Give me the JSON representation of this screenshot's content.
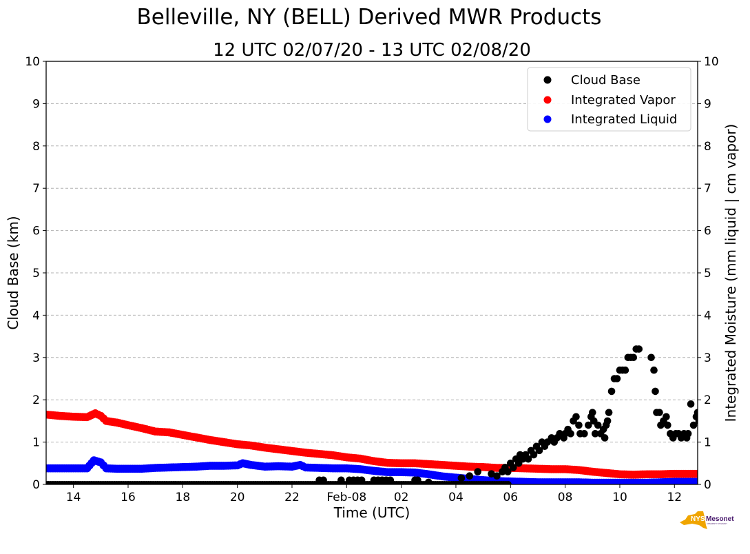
{
  "chart_data": {
    "type": "scatter",
    "title": "Belleville, NY (BELL) Derived MWR Products",
    "subtitle": "12 UTC 02/07/20 - 13 UTC 02/08/20",
    "xlabel": "Time (UTC)",
    "ylabel": "Cloud Base (km)",
    "y2label": "Integrated Moisture (mm liquid | cm vapor)",
    "x_units": "hours since 00 UTC 02/07/20",
    "xlim": [
      13.0,
      36.85
    ],
    "ylim": [
      0,
      10
    ],
    "y2lim": [
      0,
      10
    ],
    "grid": "horizontal dashed",
    "legend_position": "top-right",
    "x_ticks": [
      {
        "value": 14,
        "label": "14"
      },
      {
        "value": 16,
        "label": "16"
      },
      {
        "value": 18,
        "label": "18"
      },
      {
        "value": 20,
        "label": "20"
      },
      {
        "value": 22,
        "label": "22"
      },
      {
        "value": 24,
        "label": "Feb-08"
      },
      {
        "value": 26,
        "label": "02"
      },
      {
        "value": 28,
        "label": "04"
      },
      {
        "value": 30,
        "label": "06"
      },
      {
        "value": 32,
        "label": "08"
      },
      {
        "value": 34,
        "label": "10"
      },
      {
        "value": 36,
        "label": "12"
      }
    ],
    "y_ticks": [
      "0",
      "1",
      "2",
      "3",
      "4",
      "5",
      "6",
      "7",
      "8",
      "9",
      "10"
    ],
    "y2_ticks": [
      "0",
      "1",
      "2",
      "3",
      "4",
      "5",
      "6",
      "7",
      "8",
      "9",
      "10"
    ],
    "series": [
      {
        "name": "Cloud Base",
        "color": "#000000",
        "axis": "left",
        "style": "scatter",
        "points": [
          [
            13.0,
            0
          ],
          [
            13.5,
            0
          ],
          [
            14.0,
            0
          ],
          [
            14.5,
            0
          ],
          [
            15.0,
            0
          ],
          [
            15.5,
            0
          ],
          [
            16.0,
            0
          ],
          [
            16.5,
            0
          ],
          [
            17.0,
            0
          ],
          [
            17.5,
            0
          ],
          [
            18.0,
            0
          ],
          [
            18.5,
            0
          ],
          [
            19.0,
            0
          ],
          [
            19.5,
            0
          ],
          [
            20.0,
            0
          ],
          [
            20.5,
            0
          ],
          [
            21.0,
            0
          ],
          [
            21.5,
            0
          ],
          [
            22.0,
            0
          ],
          [
            22.5,
            0
          ],
          [
            23.0,
            0
          ],
          [
            23.5,
            0
          ],
          [
            24.0,
            0
          ],
          [
            24.5,
            0
          ],
          [
            25.0,
            0
          ],
          [
            25.5,
            0
          ],
          [
            26.0,
            0
          ],
          [
            26.5,
            0
          ],
          [
            27.0,
            0
          ],
          [
            27.5,
            0
          ],
          [
            28.0,
            0
          ],
          [
            28.5,
            0
          ],
          [
            29.0,
            0
          ],
          [
            29.5,
            0
          ],
          [
            23.0,
            0.1
          ],
          [
            23.15,
            0.1
          ],
          [
            23.8,
            0.1
          ],
          [
            24.1,
            0.1
          ],
          [
            24.25,
            0.1
          ],
          [
            24.4,
            0.1
          ],
          [
            24.55,
            0.1
          ],
          [
            25.0,
            0.1
          ],
          [
            25.15,
            0.1
          ],
          [
            25.3,
            0.1
          ],
          [
            25.45,
            0.1
          ],
          [
            25.6,
            0.1
          ],
          [
            26.5,
            0.1
          ],
          [
            26.6,
            0.1
          ],
          [
            27.0,
            0.05
          ],
          [
            28.2,
            0.15
          ],
          [
            28.5,
            0.2
          ],
          [
            28.8,
            0.3
          ],
          [
            29.3,
            0.25
          ],
          [
            29.5,
            0.2
          ],
          [
            29.7,
            0.3
          ],
          [
            29.8,
            0.4
          ],
          [
            29.9,
            0.3
          ],
          [
            30.0,
            0.5
          ],
          [
            30.1,
            0.4
          ],
          [
            30.2,
            0.6
          ],
          [
            30.3,
            0.5
          ],
          [
            30.35,
            0.7
          ],
          [
            30.45,
            0.6
          ],
          [
            30.55,
            0.7
          ],
          [
            30.65,
            0.6
          ],
          [
            30.75,
            0.8
          ],
          [
            30.85,
            0.7
          ],
          [
            30.95,
            0.9
          ],
          [
            31.05,
            0.8
          ],
          [
            31.15,
            1.0
          ],
          [
            31.25,
            0.9
          ],
          [
            31.35,
            1.0
          ],
          [
            31.5,
            1.1
          ],
          [
            31.6,
            1.0
          ],
          [
            31.7,
            1.1
          ],
          [
            31.8,
            1.2
          ],
          [
            31.95,
            1.1
          ],
          [
            32.0,
            1.2
          ],
          [
            32.1,
            1.3
          ],
          [
            32.2,
            1.2
          ],
          [
            32.3,
            1.5
          ],
          [
            32.4,
            1.6
          ],
          [
            32.5,
            1.4
          ],
          [
            32.55,
            1.2
          ],
          [
            32.7,
            1.2
          ],
          [
            32.85,
            1.4
          ],
          [
            32.95,
            1.6
          ],
          [
            33.0,
            1.7
          ],
          [
            33.05,
            1.5
          ],
          [
            33.1,
            1.2
          ],
          [
            33.2,
            1.4
          ],
          [
            33.3,
            1.2
          ],
          [
            33.4,
            1.3
          ],
          [
            33.45,
            1.1
          ],
          [
            33.5,
            1.4
          ],
          [
            33.55,
            1.5
          ],
          [
            33.6,
            1.7
          ],
          [
            33.7,
            2.2
          ],
          [
            33.8,
            2.5
          ],
          [
            33.9,
            2.5
          ],
          [
            34.0,
            2.7
          ],
          [
            34.1,
            2.7
          ],
          [
            34.2,
            2.7
          ],
          [
            34.3,
            3.0
          ],
          [
            34.4,
            3.0
          ],
          [
            34.5,
            3.0
          ],
          [
            34.6,
            3.2
          ],
          [
            34.7,
            3.2
          ],
          [
            35.15,
            3.0
          ],
          [
            35.25,
            2.7
          ],
          [
            35.3,
            2.2
          ],
          [
            35.35,
            1.7
          ],
          [
            35.45,
            1.7
          ],
          [
            35.5,
            1.4
          ],
          [
            35.6,
            1.5
          ],
          [
            35.7,
            1.6
          ],
          [
            35.75,
            1.4
          ],
          [
            35.85,
            1.2
          ],
          [
            35.95,
            1.1
          ],
          [
            36.05,
            1.2
          ],
          [
            36.15,
            1.2
          ],
          [
            36.25,
            1.1
          ],
          [
            36.35,
            1.2
          ],
          [
            36.45,
            1.1
          ],
          [
            36.5,
            1.2
          ],
          [
            36.6,
            1.9
          ],
          [
            36.7,
            1.4
          ],
          [
            36.8,
            1.6
          ],
          [
            36.85,
            1.7
          ],
          [
            36.9,
            1.5
          ],
          [
            37.0,
            1.4
          ],
          [
            37.05,
            1.2
          ],
          [
            37.15,
            1.5
          ],
          [
            37.2,
            1.1
          ],
          [
            37.25,
            0.8
          ],
          [
            37.3,
            1.2
          ],
          [
            37.35,
            1.0
          ],
          [
            37.45,
            1.2
          ],
          [
            37.5,
            1.0
          ]
        ]
      },
      {
        "name": "Integrated Vapor",
        "color": "#ff0000",
        "axis": "right",
        "style": "dense",
        "points": [
          [
            13.0,
            1.65
          ],
          [
            13.5,
            1.62
          ],
          [
            14.0,
            1.6
          ],
          [
            14.5,
            1.59
          ],
          [
            14.8,
            1.68
          ],
          [
            15.0,
            1.62
          ],
          [
            15.2,
            1.5
          ],
          [
            15.6,
            1.46
          ],
          [
            16.0,
            1.4
          ],
          [
            16.5,
            1.33
          ],
          [
            17.0,
            1.25
          ],
          [
            17.5,
            1.23
          ],
          [
            18.0,
            1.17
          ],
          [
            18.5,
            1.11
          ],
          [
            19.0,
            1.05
          ],
          [
            19.5,
            1.0
          ],
          [
            20.0,
            0.95
          ],
          [
            20.5,
            0.92
          ],
          [
            21.0,
            0.87
          ],
          [
            21.5,
            0.83
          ],
          [
            22.0,
            0.79
          ],
          [
            22.5,
            0.75
          ],
          [
            23.0,
            0.72
          ],
          [
            23.5,
            0.69
          ],
          [
            24.0,
            0.64
          ],
          [
            24.5,
            0.61
          ],
          [
            25.0,
            0.55
          ],
          [
            25.5,
            0.51
          ],
          [
            26.0,
            0.5
          ],
          [
            26.5,
            0.5
          ],
          [
            27.0,
            0.48
          ],
          [
            27.5,
            0.46
          ],
          [
            28.0,
            0.44
          ],
          [
            28.5,
            0.42
          ],
          [
            29.0,
            0.41
          ],
          [
            29.5,
            0.39
          ],
          [
            30.0,
            0.39
          ],
          [
            30.5,
            0.38
          ],
          [
            31.0,
            0.37
          ],
          [
            31.5,
            0.36
          ],
          [
            32.0,
            0.36
          ],
          [
            32.5,
            0.34
          ],
          [
            33.0,
            0.3
          ],
          [
            33.5,
            0.27
          ],
          [
            34.0,
            0.24
          ],
          [
            34.5,
            0.23
          ],
          [
            35.0,
            0.24
          ],
          [
            35.5,
            0.24
          ],
          [
            36.0,
            0.25
          ],
          [
            36.5,
            0.25
          ],
          [
            37.0,
            0.25
          ],
          [
            37.5,
            0.24
          ]
        ]
      },
      {
        "name": "Integrated Liquid",
        "color": "#0000ff",
        "axis": "right",
        "style": "dense",
        "points": [
          [
            13.0,
            0.38
          ],
          [
            13.5,
            0.38
          ],
          [
            14.0,
            0.38
          ],
          [
            14.5,
            0.38
          ],
          [
            14.75,
            0.57
          ],
          [
            15.0,
            0.52
          ],
          [
            15.2,
            0.38
          ],
          [
            15.6,
            0.37
          ],
          [
            16.0,
            0.37
          ],
          [
            16.5,
            0.37
          ],
          [
            17.0,
            0.39
          ],
          [
            17.5,
            0.4
          ],
          [
            18.0,
            0.41
          ],
          [
            18.5,
            0.42
          ],
          [
            19.0,
            0.44
          ],
          [
            19.5,
            0.44
          ],
          [
            20.0,
            0.45
          ],
          [
            20.2,
            0.5
          ],
          [
            20.5,
            0.46
          ],
          [
            21.0,
            0.42
          ],
          [
            21.5,
            0.43
          ],
          [
            22.0,
            0.42
          ],
          [
            22.3,
            0.46
          ],
          [
            22.5,
            0.4
          ],
          [
            23.0,
            0.39
          ],
          [
            23.5,
            0.38
          ],
          [
            24.0,
            0.38
          ],
          [
            24.5,
            0.36
          ],
          [
            25.0,
            0.32
          ],
          [
            25.5,
            0.29
          ],
          [
            26.0,
            0.29
          ],
          [
            26.5,
            0.28
          ],
          [
            27.0,
            0.24
          ],
          [
            27.5,
            0.19
          ],
          [
            28.0,
            0.16
          ],
          [
            28.5,
            0.13
          ],
          [
            29.0,
            0.1
          ],
          [
            29.5,
            0.08
          ],
          [
            30.0,
            0.07
          ],
          [
            30.5,
            0.06
          ],
          [
            31.0,
            0.05
          ],
          [
            31.5,
            0.05
          ],
          [
            32.0,
            0.05
          ],
          [
            32.5,
            0.05
          ],
          [
            33.0,
            0.04
          ],
          [
            33.5,
            0.04
          ],
          [
            34.0,
            0.04
          ],
          [
            34.5,
            0.04
          ],
          [
            35.0,
            0.04
          ],
          [
            35.5,
            0.05
          ],
          [
            36.0,
            0.06
          ],
          [
            36.5,
            0.06
          ],
          [
            37.0,
            0.06
          ],
          [
            37.5,
            0.06
          ]
        ]
      }
    ]
  },
  "logo": {
    "text_left": "NYS",
    "text_right": "Mesonet",
    "subtext": "UNIVERSITY AT ALBANY",
    "gold": "#f0a500",
    "purple": "#46166b"
  }
}
